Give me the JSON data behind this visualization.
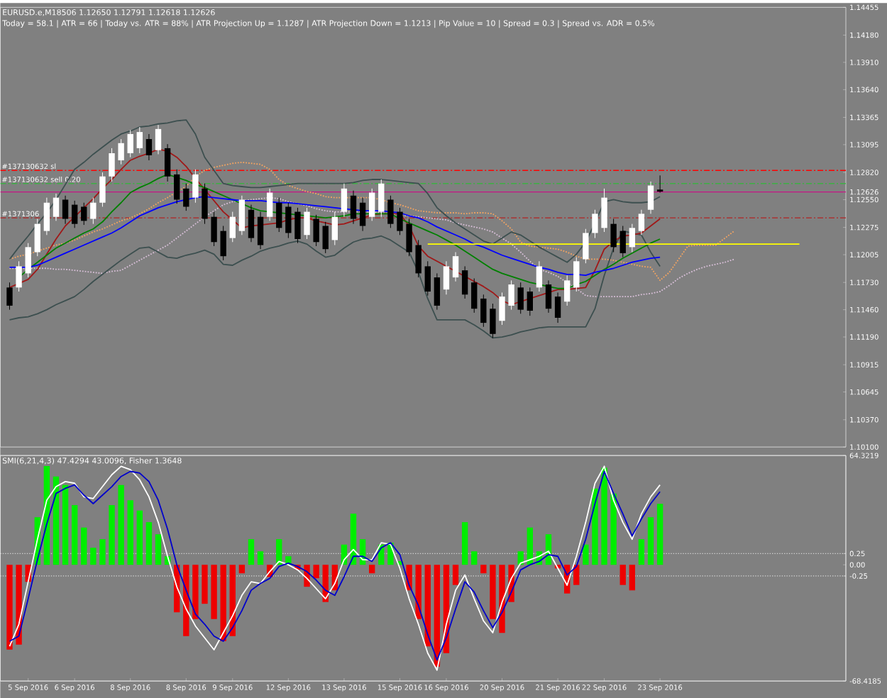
{
  "chart_data": [
    {
      "type": "candlestick",
      "title": "EURUSD.e,M18506  1.12650 1.12791 1.12618 1.12626",
      "subtitle": "Today = 58.1   |   ATR = 66   |   Today vs. ATR = 88%   |   ATR Projection Up = 1.1287   |   ATR Projection Down = 1.1213   |   Pip Value = 10   |   Spread = 0.3   |   Spread vs. ADR = 0.5%",
      "categories": [
        null,
        null,
        null,
        null,
        null,
        null,
        null,
        null,
        null,
        null,
        null,
        null,
        null,
        null,
        null,
        null,
        null,
        null,
        null,
        null,
        null,
        null,
        null,
        null,
        null,
        null,
        null,
        null,
        null,
        null,
        null,
        null,
        null,
        null,
        null,
        null,
        null,
        null,
        null,
        null,
        null,
        null,
        null,
        null,
        null,
        null,
        null,
        null,
        null,
        null,
        null,
        null,
        null,
        null,
        null,
        null,
        null,
        null,
        null,
        null,
        null,
        null,
        null,
        null,
        null,
        null,
        null,
        null,
        null,
        null,
        null,
        null,
        null,
        null,
        null,
        null,
        null,
        null,
        null,
        null,
        null,
        null,
        null,
        null,
        null,
        null,
        null,
        null,
        null,
        null,
        null
      ],
      "ohlc": [
        [
          1.1168,
          1.1173,
          1.1146,
          1.115
        ],
        [
          1.1168,
          1.1194,
          1.1164,
          1.1189
        ],
        [
          1.1182,
          1.1212,
          1.1178,
          1.1208
        ],
        [
          1.1203,
          1.1236,
          1.1199,
          1.1231
        ],
        [
          1.1224,
          1.1257,
          1.122,
          1.1252
        ],
        [
          1.1238,
          1.1261,
          1.1234,
          1.1257
        ],
        [
          1.1255,
          1.1259,
          1.1231,
          1.1236
        ],
        [
          1.125,
          1.1254,
          1.1227,
          1.1231
        ],
        [
          1.1248,
          1.1252,
          1.123,
          1.1234
        ],
        [
          1.1236,
          1.1257,
          1.1231,
          1.1252
        ],
        [
          1.1252,
          1.1282,
          1.1248,
          1.1278
        ],
        [
          1.1278,
          1.1306,
          1.1273,
          1.1301
        ],
        [
          1.1294,
          1.1315,
          1.129,
          1.1311
        ],
        [
          1.1301,
          1.1324,
          1.1297,
          1.132
        ],
        [
          1.1306,
          1.1327,
          1.1301,
          1.1322
        ],
        [
          1.1315,
          1.132,
          1.1294,
          1.1299
        ],
        [
          1.1304,
          1.1329,
          1.13,
          1.1325
        ],
        [
          1.1306,
          1.131,
          1.1273,
          1.1278
        ],
        [
          1.128,
          1.1285,
          1.1251,
          1.1255
        ],
        [
          1.1266,
          1.1271,
          1.1244,
          1.1248
        ],
        [
          1.1257,
          1.1285,
          1.1252,
          1.128
        ],
        [
          1.1266,
          1.1271,
          1.1231,
          1.1236
        ],
        [
          1.1238,
          1.1243,
          1.1209,
          1.1213
        ],
        [
          1.1224,
          1.1229,
          1.1195,
          1.1199
        ],
        [
          1.1217,
          1.1243,
          1.1213,
          1.1238
        ],
        [
          1.1224,
          1.1259,
          1.122,
          1.1255
        ],
        [
          1.1245,
          1.125,
          1.1213,
          1.1217
        ],
        [
          1.1238,
          1.1243,
          1.1206,
          1.121
        ],
        [
          1.1238,
          1.1266,
          1.1234,
          1.1262
        ],
        [
          1.1252,
          1.1257,
          1.1223,
          1.1227
        ],
        [
          1.1248,
          1.1252,
          1.1217,
          1.1222
        ],
        [
          1.1243,
          1.1247,
          1.1212,
          1.1216
        ],
        [
          1.122,
          1.1247,
          1.1216,
          1.1243
        ],
        [
          1.1236,
          1.124,
          1.1209,
          1.1213
        ],
        [
          1.1229,
          1.1233,
          1.1202,
          1.1206
        ],
        [
          1.1215,
          1.1243,
          1.121,
          1.1238
        ],
        [
          1.1243,
          1.1271,
          1.1238,
          1.1266
        ],
        [
          1.1259,
          1.1264,
          1.1231,
          1.1236
        ],
        [
          1.1252,
          1.1257,
          1.1224,
          1.1229
        ],
        [
          1.1238,
          1.1266,
          1.1234,
          1.1262
        ],
        [
          1.1243,
          1.1275,
          1.1238,
          1.1271
        ],
        [
          1.1255,
          1.1259,
          1.1227,
          1.1231
        ],
        [
          1.1243,
          1.1247,
          1.122,
          1.1224
        ],
        [
          1.1231,
          1.1236,
          1.1199,
          1.1203
        ],
        [
          1.121,
          1.1215,
          1.1178,
          1.1182
        ],
        [
          1.1189,
          1.1194,
          1.116,
          1.1164
        ],
        [
          1.1178,
          1.1182,
          1.1146,
          1.115
        ],
        [
          1.1166,
          1.1194,
          1.1161,
          1.1189
        ],
        [
          1.1178,
          1.1203,
          1.1174,
          1.1199
        ],
        [
          1.1185,
          1.1189,
          1.1157,
          1.1161
        ],
        [
          1.1173,
          1.1177,
          1.1143,
          1.1147
        ],
        [
          1.1157,
          1.1161,
          1.1129,
          1.1133
        ],
        [
          1.1147,
          1.1152,
          1.1118,
          1.1122
        ],
        [
          1.1135,
          1.1163,
          1.1131,
          1.1159
        ],
        [
          1.115,
          1.1175,
          1.1146,
          1.1171
        ],
        [
          1.1168,
          1.1173,
          1.1142,
          1.1146
        ],
        [
          1.1164,
          1.1168,
          1.114,
          1.1145
        ],
        [
          1.1168,
          1.1194,
          1.1164,
          1.1189
        ],
        [
          1.1171,
          1.1175,
          1.1143,
          1.1147
        ],
        [
          1.1159,
          1.1163,
          1.1133,
          1.1138
        ],
        [
          1.1154,
          1.118,
          1.115,
          1.1175
        ],
        [
          1.1168,
          1.1198,
          1.1164,
          1.1194
        ],
        [
          1.1196,
          1.1226,
          1.1192,
          1.1222
        ],
        [
          1.1222,
          1.1245,
          1.1217,
          1.1241
        ],
        [
          1.1227,
          1.1266,
          1.1223,
          1.1257
        ],
        [
          1.1231,
          1.1236,
          1.1203,
          1.1208
        ],
        [
          1.1224,
          1.1229,
          1.1198,
          1.1202
        ],
        [
          1.1208,
          1.1231,
          1.1203,
          1.1227
        ],
        [
          1.1224,
          1.1245,
          1.122,
          1.1241
        ],
        [
          1.1245,
          1.1273,
          1.1241,
          1.1269
        ],
        [
          1.1265,
          1.1279,
          1.1262,
          1.1263
        ],
        null,
        null,
        null,
        null,
        null,
        null,
        null,
        null,
        null,
        null,
        null,
        null,
        null,
        null,
        null,
        null,
        null,
        null,
        null,
        null
      ],
      "series": [
        {
          "type": "line",
          "color": "#f4a460",
          "line_style": "dotted",
          "values": [
            1.1196,
            1.1199,
            1.1201,
            1.1204,
            1.1207,
            1.121,
            1.1212,
            1.1215,
            1.1219,
            1.1223,
            1.1226,
            1.123,
            1.1234,
            1.1237,
            1.1241,
            1.1246,
            1.1252,
            1.1257,
            1.1263,
            1.1268,
            1.1278,
            1.1284,
            1.1287,
            1.1289,
            1.1291,
            1.1292,
            1.1291,
            1.129,
            1.1285,
            1.1275,
            1.1269,
            1.1266,
            1.1263,
            1.1261,
            1.1258,
            1.1257,
            1.1257,
            1.1257,
            1.1257,
            1.1257,
            1.1255,
            1.1252,
            1.125,
            1.1247,
            1.1244,
            1.1243,
            1.1242,
            1.1242,
            1.1242,
            1.1241,
            1.1242,
            1.1242,
            1.1241,
            1.1234,
            1.1226,
            1.1213,
            1.1209,
            1.1208,
            1.1207,
            1.1206,
            1.1203,
            1.1199,
            1.1196,
            1.1196,
            1.1196,
            1.1195,
            1.1193,
            1.1191,
            1.1189,
            1.1188,
            1.1175,
            1.1183,
            1.1196,
            1.1209,
            1.121,
            1.121,
            1.121,
            1.1217,
            1.1224,
            null,
            null,
            null,
            null,
            null,
            null,
            null,
            null,
            null,
            null,
            null,
            null
          ]
        },
        {
          "type": "line",
          "color": "#d8bfd8",
          "line_style": "dotted",
          "values": [
            1.1187,
            1.1187,
            1.1187,
            1.1187,
            1.1187,
            1.1186,
            1.1186,
            1.1185,
            1.1184,
            1.1183,
            1.1182,
            1.1184,
            1.1185,
            1.119,
            1.1195,
            1.12,
            1.1205,
            1.121,
            1.1217,
            1.1224,
            1.1231,
            1.1238,
            1.1244,
            1.125,
            1.1253,
            1.1254,
            1.1255,
            1.1256,
            1.1257,
            1.1256,
            1.1253,
            1.1251,
            1.1249,
            1.1246,
            1.1244,
            1.1243,
            1.1243,
            1.1243,
            1.1243,
            1.1243,
            1.1242,
            1.1241,
            1.124,
            1.1239,
            1.1238,
            1.1237,
            1.1236,
            1.1235,
            1.1232,
            1.123,
            1.1228,
            1.1226,
            1.1223,
            1.1217,
            1.1211,
            1.1203,
            1.1194,
            1.1186,
            1.1183,
            1.1179,
            1.1173,
            1.1167,
            1.116,
            1.1159,
            1.1159,
            1.1159,
            1.1159,
            1.1159,
            1.1161,
            1.1162,
            1.1164,
            1.117,
            1.1177,
            1.1182,
            1.1186,
            1.1189,
            1.1191,
            1.1193,
            1.1196,
            null,
            null,
            null,
            null,
            null,
            null,
            null,
            null,
            null,
            null,
            null,
            null
          ]
        },
        {
          "type": "line",
          "color": "#3c4f4f",
          "values": [
            1.1196,
            1.1208,
            1.1219,
            1.1231,
            1.1242,
            1.1255,
            1.127,
            1.1285,
            1.1292,
            1.13,
            1.1307,
            1.1314,
            1.132,
            1.1323,
            1.1327,
            1.1328,
            1.133,
            1.1331,
            1.1333,
            1.1334,
            1.132,
            1.1297,
            1.1284,
            1.1271,
            1.1269,
            1.1268,
            1.1267,
            1.1267,
            1.1268,
            1.1269,
            1.127,
            1.1271,
            1.1271,
            1.1271,
            1.1271,
            1.1271,
            1.1271,
            1.1272,
            1.1274,
            1.1275,
            1.1275,
            1.1274,
            1.1273,
            1.1272,
            1.1271,
            1.1261,
            1.1247,
            1.1239,
            1.1232,
            1.1226,
            1.122,
            1.1214,
            1.1211,
            1.1217,
            1.1223,
            1.122,
            1.1214,
            1.1208,
            1.1203,
            1.1198,
            1.1193,
            1.1201,
            1.1213,
            1.1232,
            1.1253,
            1.1255,
            1.1253,
            1.1252,
            1.1252,
            1.1253,
            1.1258,
            null,
            null,
            null,
            null,
            null,
            null,
            null,
            null,
            null,
            null,
            null,
            null,
            null,
            null,
            null,
            null,
            null,
            null,
            null,
            null
          ]
        },
        {
          "type": "line",
          "color": "#3c4f4f",
          "values": [
            1.1136,
            1.1138,
            1.1139,
            1.1142,
            1.1146,
            1.1151,
            1.1155,
            1.1159,
            1.1166,
            1.1174,
            1.1181,
            1.1188,
            1.1195,
            1.1201,
            1.1207,
            1.1208,
            1.1203,
            1.1198,
            1.1197,
            1.12,
            1.1202,
            1.1205,
            1.1201,
            1.1191,
            1.119,
            1.1195,
            1.1199,
            1.1204,
            1.1207,
            1.1209,
            1.1212,
            1.1214,
            1.1211,
            1.1204,
            1.1198,
            1.12,
            1.1207,
            1.1213,
            1.1216,
            1.1217,
            1.1219,
            1.1215,
            1.1209,
            1.1203,
            1.1183,
            1.1157,
            1.1136,
            1.1136,
            1.1136,
            1.1136,
            1.1131,
            1.1125,
            1.1118,
            1.1119,
            1.1121,
            1.1124,
            1.1126,
            1.1128,
            1.1129,
            1.1129,
            1.1129,
            1.1129,
            1.1129,
            1.1147,
            1.118,
            1.1207,
            1.1224,
            1.1222,
            1.122,
            1.1203,
            1.1189,
            null,
            null,
            null,
            null,
            null,
            null,
            null,
            null,
            null,
            null,
            null,
            null,
            null,
            null,
            null,
            null,
            null,
            null,
            null,
            null
          ]
        },
        {
          "type": "line",
          "color": "#a01818",
          "values": [
            1.1168,
            1.1172,
            1.1176,
            1.1186,
            1.1201,
            1.1216,
            1.1229,
            1.1238,
            1.1247,
            1.1256,
            1.1266,
            1.1275,
            1.1285,
            1.1294,
            1.1298,
            1.1301,
            1.1305,
            1.1303,
            1.1297,
            1.1288,
            1.1276,
            1.1265,
            1.1254,
            1.1243,
            1.1235,
            1.1227,
            1.1229,
            1.123,
            1.1231,
            1.1232,
            1.1235,
            1.1237,
            1.1237,
            1.1234,
            1.1232,
            1.123,
            1.1231,
            1.1234,
            1.1237,
            1.124,
            1.1241,
            1.1241,
            1.1241,
            1.1229,
            1.1209,
            1.1199,
            1.1194,
            1.1189,
            1.1184,
            1.1179,
            1.1174,
            1.1169,
            1.1163,
            1.1155,
            1.1151,
            1.1154,
            1.1157,
            1.116,
            1.1163,
            1.1166,
            1.1166,
            1.1167,
            1.1168,
            1.1185,
            1.1206,
            1.1214,
            1.1219,
            1.122,
            1.1222,
            1.1229,
            1.1236,
            null,
            null,
            null,
            null,
            null,
            null,
            null,
            null,
            null,
            null,
            null,
            null,
            null,
            null,
            null,
            null,
            null,
            null,
            null,
            null
          ]
        },
        {
          "type": "line",
          "color": "#008000",
          "values": [
            null,
            1.1178,
            1.1186,
            1.1193,
            1.12,
            1.1207,
            1.1212,
            1.1217,
            1.1222,
            1.1226,
            1.1233,
            1.1243,
            1.1252,
            1.1262,
            1.1267,
            1.1271,
            1.1276,
            1.128,
            1.1277,
            1.1274,
            1.127,
            1.1267,
            1.1263,
            1.1259,
            1.1255,
            1.1251,
            1.1247,
            1.1244,
            1.1243,
            1.1242,
            1.1241,
            1.124,
            1.1239,
            1.1238,
            1.1237,
            1.1238,
            1.1239,
            1.1241,
            1.1241,
            1.1241,
            1.1241,
            1.1241,
            1.1236,
            1.1232,
            1.1228,
            1.1224,
            1.122,
            1.1215,
            1.121,
            1.1204,
            1.1198,
            1.1192,
            1.1186,
            1.1182,
            1.1179,
            1.1176,
            1.1173,
            1.1171,
            1.1169,
            1.1167,
            1.1167,
            1.1171,
            1.1174,
            1.118,
            1.1186,
            1.1191,
            1.1197,
            1.1202,
            1.1207,
            1.1212,
            1.1216,
            null,
            null,
            null,
            null,
            null,
            null,
            null,
            null,
            null,
            null,
            null,
            null,
            null,
            null,
            null,
            null,
            null,
            null,
            null,
            null
          ]
        },
        {
          "type": "line",
          "color": "#0000ff",
          "values": [
            1.1188,
            1.1188,
            1.1188,
            1.119,
            1.1194,
            1.1198,
            1.1202,
            1.1206,
            1.121,
            1.1214,
            1.1218,
            1.1222,
            1.1227,
            1.1233,
            1.1239,
            1.1243,
            1.1247,
            1.125,
            1.1253,
            1.1255,
            1.1257,
            1.1258,
            1.1257,
            1.1256,
            1.1255,
            1.1254,
            1.1254,
            1.1254,
            1.1253,
            1.1252,
            1.1252,
            1.1251,
            1.125,
            1.1249,
            1.1248,
            1.1247,
            1.1246,
            1.1245,
            1.1244,
            1.1244,
            1.1244,
            1.1243,
            1.1242,
            1.1239,
            1.1237,
            1.1233,
            1.1228,
            1.1224,
            1.122,
            1.1216,
            1.1211,
            1.1208,
            1.1204,
            1.12,
            1.1197,
            1.1194,
            1.1191,
            1.1188,
            1.1186,
            1.1183,
            1.1181,
            1.1181,
            1.118,
            1.1183,
            1.1185,
            1.1187,
            1.119,
            1.1193,
            1.1195,
            1.1197,
            1.1198,
            null,
            null,
            null,
            null,
            null,
            null,
            null,
            null,
            null,
            null,
            null,
            null,
            null,
            null,
            null,
            null,
            null,
            null,
            null,
            null
          ]
        },
        {
          "type": "line",
          "color": "#ffff00",
          "values": [
            null,
            null,
            null,
            null,
            null,
            null,
            null,
            null,
            null,
            null,
            null,
            null,
            null,
            null,
            null,
            null,
            null,
            null,
            null,
            null,
            null,
            null,
            null,
            null,
            null,
            null,
            null,
            null,
            null,
            null,
            null,
            null,
            null,
            null,
            null,
            null,
            null,
            null,
            null,
            null,
            null,
            null,
            null,
            null,
            null,
            1.1211,
            1.1211,
            1.1211,
            1.1211,
            1.1211,
            1.1211,
            1.1211,
            1.1211,
            1.1211,
            1.1211,
            1.1211,
            1.1211,
            1.1211,
            1.1211,
            1.1211,
            1.1211,
            1.1211,
            1.1211,
            1.1211,
            1.1211,
            1.1211,
            1.1211,
            1.1211,
            1.1211,
            1.1211,
            1.1211,
            1.1211,
            1.1211,
            1.1211,
            1.1211,
            1.1211,
            1.1211,
            1.1211,
            1.1211,
            1.1211,
            1.1211,
            1.1211,
            1.1211,
            1.1211,
            1.1211,
            1.1211,
            null,
            null,
            null,
            null,
            null
          ]
        }
      ],
      "ref_lines": [
        {
          "axis": "y",
          "value": 1.1284,
          "label": "#137130632 sl",
          "color": "#ff0000",
          "line_style": "dashed"
        },
        {
          "axis": "y",
          "value": 1.1271,
          "label": "#137130632 sell 0.20",
          "color": "#3cb043",
          "line_style": "dashed"
        },
        {
          "axis": "y",
          "value": 1.12626,
          "color": "#c71585",
          "line_style": "solid"
        },
        {
          "axis": "y",
          "value": 1.1237,
          "color": "#b22222",
          "line_style": "dashed"
        }
      ],
      "annotations": [
        {
          "text": "#1371306",
          "y": 1.1237
        }
      ],
      "ylim": [
        1.101,
        1.14455
      ],
      "yticks": [
        {
          "value": 1.14455,
          "label": "1.14455"
        },
        {
          "value": 1.1418,
          "label": "1.14180"
        },
        {
          "value": 1.1391,
          "label": "1.13910"
        },
        {
          "value": 1.1364,
          "label": "1.13640"
        },
        {
          "value": 1.13365,
          "label": "1.13365"
        },
        {
          "value": 1.13095,
          "label": "1.13095"
        },
        {
          "value": 1.1282,
          "label": "1.12820"
        },
        {
          "value": 1.12626,
          "label": "1.12626"
        },
        {
          "value": 1.1255,
          "label": "1.12550"
        },
        {
          "value": 1.12275,
          "label": "1.12275"
        },
        {
          "value": 1.12005,
          "label": "1.12005"
        },
        {
          "value": 1.1173,
          "label": "1.11730"
        },
        {
          "value": 1.1146,
          "label": "1.11460"
        },
        {
          "value": 1.1119,
          "label": "1.11190"
        },
        {
          "value": 1.10915,
          "label": "1.10915"
        },
        {
          "value": 1.10645,
          "label": "1.10645"
        },
        {
          "value": 1.1037,
          "label": "1.10370"
        },
        {
          "value": 1.101,
          "label": "1.10100"
        }
      ],
      "tick_labels": "y"
    },
    {
      "type": "bar",
      "title": "SMI(6,21,4,3) 47.4294 43.0096, Fisher 1.3648",
      "categories": [
        null,
        null,
        "5 Sep 2016",
        null,
        null,
        null,
        null,
        "6 Sep 2016",
        null,
        null,
        null,
        null,
        null,
        "8 Sep 2016",
        null,
        null,
        null,
        null,
        null,
        "8 Sep 2016",
        null,
        null,
        null,
        null,
        "9 Sep 2016",
        null,
        null,
        null,
        null,
        null,
        "12 Sep 2016",
        null,
        null,
        null,
        null,
        null,
        "13 Sep 2016",
        null,
        null,
        null,
        null,
        null,
        "15 Sep 2016",
        null,
        null,
        null,
        null,
        "16 Sep 2016",
        null,
        null,
        null,
        null,
        null,
        "20 Sep 2016",
        null,
        null,
        null,
        null,
        null,
        "21 Sep 2016",
        null,
        null,
        null,
        null,
        "22 Sep 2016",
        null,
        null,
        null,
        null,
        null,
        "23 Sep 2016",
        null,
        null,
        null,
        null,
        null,
        null,
        null,
        null,
        null,
        null,
        null,
        null,
        null,
        null,
        null,
        null,
        null,
        null,
        null,
        null
      ],
      "series": [
        {
          "type": "bar",
          "axis": "y2",
          "values": [
            -1.89,
            -1.78,
            -0.38,
            1.06,
            2.2,
            1.97,
            1.78,
            1.33,
            0.83,
            0.38,
            0.57,
            1.33,
            1.78,
            1.44,
            1.21,
            0.95,
            0.68,
            0.19,
            -1.06,
            -1.59,
            -1.21,
            -0.87,
            -1.21,
            -1.7,
            -1.59,
            -0.19,
            0.57,
            0.3,
            -0.27,
            0.57,
            0.19,
            -0.11,
            -0.49,
            -0.3,
            -0.83,
            -0.57,
            0.45,
            1.14,
            0.57,
            -0.19,
            0.45,
            0.49,
            0.08,
            -0.57,
            -1.21,
            -1.82,
            -2.27,
            -1.97,
            -0.45,
            0.95,
            0.3,
            -0.19,
            -1.21,
            -1.52,
            -0.83,
            0.3,
            0.83,
            0.3,
            0.68,
            -0.08,
            -0.64,
            -0.45,
            0.45,
            1.7,
            2.16,
            1.59,
            -0.45,
            -0.57,
            0.57,
            1.06,
            1.36,
            null,
            null,
            null,
            null,
            null,
            null,
            null,
            null,
            null,
            null,
            null,
            null,
            null,
            null,
            null,
            null,
            null,
            null,
            null,
            null
          ],
          "colors": [
            "#ee0000",
            "#ee0000",
            "#ee0000",
            "#00ee00",
            "#00ee00",
            "#00ee00",
            "#00ee00",
            "#00ee00",
            "#00ee00",
            "#00ee00",
            "#00ee00",
            "#00ee00",
            "#00ee00",
            "#00ee00",
            "#00ee00",
            "#00ee00",
            "#00ee00",
            "#00ee00",
            "#ee0000",
            "#ee0000",
            "#ee0000",
            "#ee0000",
            "#ee0000",
            "#ee0000",
            "#ee0000",
            "#ee0000",
            "#00ee00",
            "#00ee00",
            "#ee0000",
            "#00ee00",
            "#00ee00",
            "#ee0000",
            "#ee0000",
            "#ee0000",
            "#ee0000",
            "#ee0000",
            "#00ee00",
            "#00ee00",
            "#00ee00",
            "#ee0000",
            "#00ee00",
            "#00ee00",
            "#00ee00",
            "#ee0000",
            "#ee0000",
            "#ee0000",
            "#ee0000",
            "#ee0000",
            "#ee0000",
            "#00ee00",
            "#00ee00",
            "#ee0000",
            "#ee0000",
            "#ee0000",
            "#ee0000",
            "#00ee00",
            "#00ee00",
            "#00ee00",
            "#00ee00",
            "#ee0000",
            "#ee0000",
            "#ee0000",
            "#00ee00",
            "#00ee00",
            "#00ee00",
            "#00ee00",
            "#ee0000",
            "#ee0000",
            "#00ee00",
            "#00ee00",
            "#00ee00",
            null,
            null,
            null,
            null,
            null,
            null,
            null,
            null,
            null,
            null,
            null,
            null,
            null,
            null,
            null,
            null,
            null,
            null,
            null,
            null
          ]
        },
        {
          "type": "line",
          "color": "#ffffff",
          "values": [
            -48,
            -35,
            -10,
            15,
            38,
            46,
            49,
            48,
            40,
            39,
            46,
            53,
            58,
            56,
            50,
            40,
            25,
            5,
            -13,
            -26,
            -36,
            -43,
            -50,
            -40,
            -30,
            -18,
            -10,
            -11,
            -4,
            2,
            0,
            -3,
            -8,
            -14,
            -20,
            -11,
            3,
            9,
            3,
            3,
            13,
            12,
            -2,
            -20,
            -35,
            -52,
            -62,
            -35,
            -15,
            -6,
            -20,
            -33,
            -40,
            -22,
            -8,
            1,
            3,
            5,
            8,
            -2,
            -12,
            5,
            25,
            48,
            58,
            38,
            25,
            15,
            30,
            40,
            47,
            null,
            null,
            null,
            null,
            null,
            null,
            null,
            null,
            null,
            null,
            null,
            null,
            null,
            null,
            null,
            null,
            null,
            null,
            null,
            null
          ]
        },
        {
          "type": "line",
          "color": "#0000cc",
          "values": [
            -45,
            -42,
            -20,
            3,
            24,
            42,
            45,
            47,
            41,
            36,
            41,
            46,
            52,
            55,
            54,
            49,
            38,
            21,
            0,
            -15,
            -29,
            -35,
            -42,
            -45,
            -37,
            -27,
            -15,
            -11,
            -8,
            -1,
            1,
            -1,
            -4,
            -9,
            -15,
            -18,
            -7,
            5,
            5,
            2,
            10,
            13,
            6,
            -12,
            -24,
            -41,
            -56,
            -43,
            -26,
            -10,
            -16,
            -27,
            -37,
            -28,
            -16,
            -3,
            0,
            2,
            6,
            5,
            -6,
            -1,
            15,
            36,
            55,
            42,
            30,
            17,
            27,
            36,
            43,
            null,
            null,
            null,
            null,
            null,
            null,
            null,
            null,
            null,
            null,
            null,
            null,
            null,
            null,
            null,
            null,
            null,
            null,
            null,
            null
          ]
        }
      ],
      "ref_lines": [
        {
          "axis": "y2",
          "value": 0.25,
          "color": "#d0d0d0",
          "line_style": "dotted"
        },
        {
          "axis": "y2",
          "value": -0.25,
          "color": "#d0d0d0",
          "line_style": "dotted"
        }
      ],
      "ylim": [
        -68.4185,
        64.3219
      ],
      "yticks": [
        {
          "value": 64.3219,
          "label": "64.3219"
        },
        {
          "value": -68.4185,
          "label": "-68.4185"
        }
      ],
      "y2lim": [
        -2.592,
        2.436
      ],
      "y2ticks": [
        0.25,
        {
          "value": 0,
          "label": "0.00"
        },
        -0.25
      ]
    }
  ]
}
